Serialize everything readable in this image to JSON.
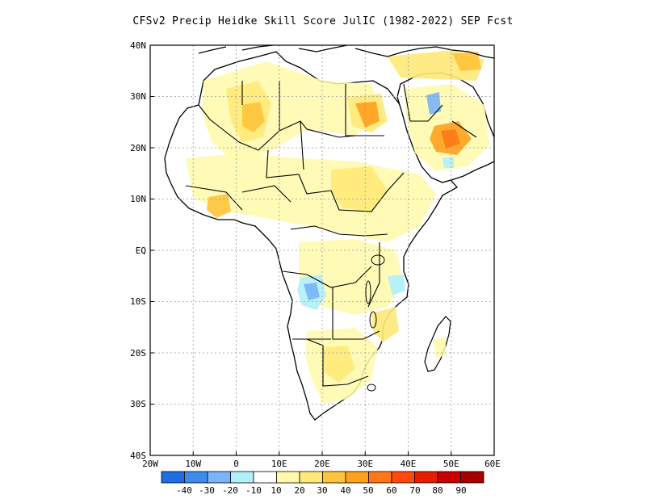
{
  "title": "CFSv2 Precip Heidke Skill Score JulIC (1982-2022) SEP Fcst",
  "map": {
    "lat_labels": [
      "40N",
      "30N",
      "20N",
      "10N",
      "EQ",
      "10S",
      "20S",
      "30S",
      "40S"
    ],
    "lon_labels": [
      "20W",
      "10W",
      "0",
      "10E",
      "20E",
      "30E",
      "40E",
      "50E",
      "60E"
    ]
  },
  "colorbar": {
    "colors": [
      "#1e6ee6",
      "#3c8cf0",
      "#78b4f6",
      "#b4f0fa",
      "#ffffff",
      "#fffaaa",
      "#ffe978",
      "#ffc43c",
      "#ffa01e",
      "#ff7814",
      "#ff4a0a",
      "#e61e00",
      "#c80000",
      "#a50000"
    ],
    "labels": [
      "-40",
      "-30",
      "-20",
      "-10",
      "10",
      "20",
      "30",
      "40",
      "50",
      "60",
      "70",
      "80",
      "90"
    ]
  },
  "annotation_colors": {
    "land": "#ffffff",
    "coast": "#000000",
    "grid": "#999999"
  }
}
